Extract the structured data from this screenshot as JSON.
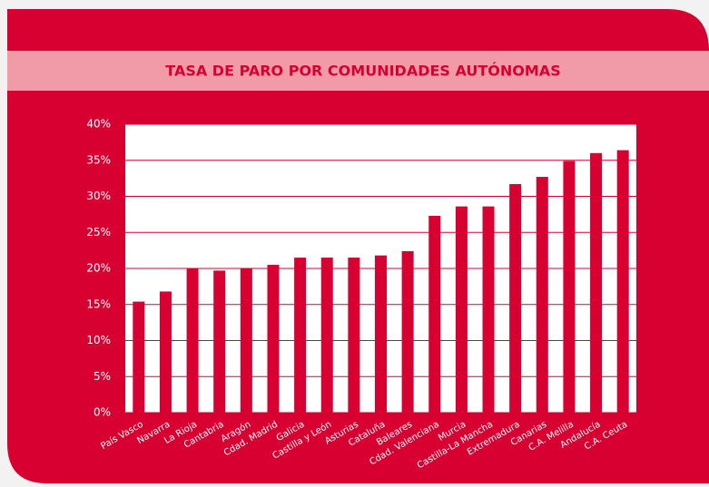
{
  "chart_data": {
    "type": "bar",
    "title": "TASA DE PARO POR COMUNIDADES AUTÓNOMAS",
    "categories": [
      "País Vasco",
      "Navarra",
      "La Rioja",
      "Cantabria",
      "Aragón",
      "Cdad. Madrid",
      "Galicia",
      "Castilla y León",
      "Asturias",
      "Cataluña",
      "Baleares",
      "Cdad. Valenciana",
      "Murcia",
      "Castilla-La Mancha",
      "Extremadura",
      "Canarias",
      "C.A. Melilla",
      "Andalucía",
      "C.A. Ceuta"
    ],
    "values": [
      15.4,
      16.8,
      20.0,
      19.7,
      20.0,
      20.5,
      21.5,
      21.5,
      21.5,
      21.8,
      22.4,
      27.3,
      28.6,
      28.6,
      31.7,
      32.7,
      34.9,
      36.0,
      36.4
    ],
    "color": "#d80030",
    "ylim": [
      0,
      40
    ],
    "yticks": [
      {
        "value": 0,
        "label": "0%"
      },
      {
        "value": 5,
        "label": "5%"
      },
      {
        "value": 10,
        "label": "10%"
      },
      {
        "value": 15,
        "label": "15%"
      },
      {
        "value": 20,
        "label": "20%"
      },
      {
        "value": 25,
        "label": "25%"
      },
      {
        "value": 30,
        "label": "30%"
      },
      {
        "value": 35,
        "label": "35%"
      },
      {
        "value": 40,
        "label": "40%"
      }
    ],
    "grid": true
  }
}
